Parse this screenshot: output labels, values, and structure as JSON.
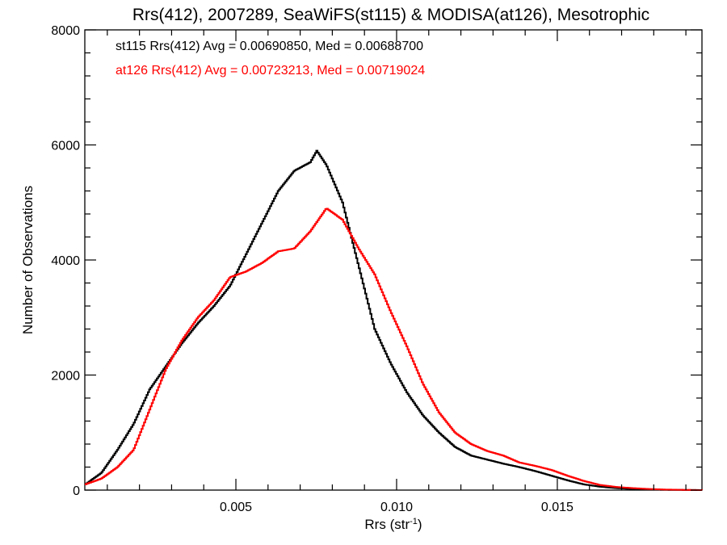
{
  "chart_data": {
    "type": "line",
    "step": true,
    "title": "Rrs(412), 2007289, SeaWiFS(st115) & MODISA(at126), Mesotrophic",
    "xlabel_main": "Rrs (str",
    "xlabel_sup": "-1",
    "xlabel_close": ")",
    "ylabel": "Number of Observations",
    "xlim": [
      0.0003,
      0.0195
    ],
    "ylim": [
      0,
      8000
    ],
    "x_ticks": [
      {
        "value": 0.005,
        "label": "0.005"
      },
      {
        "value": 0.01,
        "label": "0.010"
      },
      {
        "value": 0.015,
        "label": "0.015"
      }
    ],
    "y_ticks": [
      {
        "value": 0,
        "label": "0"
      },
      {
        "value": 2000,
        "label": "2000"
      },
      {
        "value": 4000,
        "label": "4000"
      },
      {
        "value": 6000,
        "label": "6000"
      },
      {
        "value": 8000,
        "label": "8000"
      }
    ],
    "annotations": [
      {
        "text": "st115 Rrs(412) Avg = 0.00690850, Med = 0.00688700",
        "color": "#000000"
      },
      {
        "text": "at126 Rrs(412) Avg = 0.00723213, Med = 0.00719024",
        "color": "#ff0000"
      }
    ],
    "series": [
      {
        "color": "#000000",
        "points": [
          [
            0.0003,
            100
          ],
          [
            0.0008,
            300
          ],
          [
            0.0013,
            700
          ],
          [
            0.0018,
            1150
          ],
          [
            0.0023,
            1750
          ],
          [
            0.0028,
            2150
          ],
          [
            0.0033,
            2550
          ],
          [
            0.0038,
            2900
          ],
          [
            0.0043,
            3200
          ],
          [
            0.0048,
            3550
          ],
          [
            0.0053,
            4100
          ],
          [
            0.0058,
            4650
          ],
          [
            0.0063,
            5200
          ],
          [
            0.0068,
            5550
          ],
          [
            0.0073,
            5700
          ],
          [
            0.0075,
            5900
          ],
          [
            0.0078,
            5650
          ],
          [
            0.0083,
            5000
          ],
          [
            0.0088,
            3900
          ],
          [
            0.0093,
            2800
          ],
          [
            0.0098,
            2200
          ],
          [
            0.0103,
            1700
          ],
          [
            0.0108,
            1300
          ],
          [
            0.0113,
            1000
          ],
          [
            0.0118,
            750
          ],
          [
            0.0123,
            600
          ],
          [
            0.0128,
            530
          ],
          [
            0.0133,
            460
          ],
          [
            0.0138,
            400
          ],
          [
            0.0143,
            330
          ],
          [
            0.0148,
            250
          ],
          [
            0.0153,
            170
          ],
          [
            0.0158,
            100
          ],
          [
            0.0163,
            60
          ],
          [
            0.0168,
            35
          ],
          [
            0.0173,
            20
          ],
          [
            0.0178,
            10
          ],
          [
            0.0183,
            5
          ],
          [
            0.0195,
            0
          ]
        ]
      },
      {
        "color": "#ff0000",
        "points": [
          [
            0.0003,
            100
          ],
          [
            0.0008,
            200
          ],
          [
            0.0013,
            400
          ],
          [
            0.0018,
            700
          ],
          [
            0.0023,
            1400
          ],
          [
            0.0028,
            2100
          ],
          [
            0.0033,
            2600
          ],
          [
            0.0038,
            3000
          ],
          [
            0.0043,
            3300
          ],
          [
            0.0048,
            3700
          ],
          [
            0.0053,
            3800
          ],
          [
            0.0058,
            3950
          ],
          [
            0.0063,
            4150
          ],
          [
            0.0068,
            4200
          ],
          [
            0.0073,
            4500
          ],
          [
            0.0078,
            4900
          ],
          [
            0.0083,
            4700
          ],
          [
            0.0088,
            4200
          ],
          [
            0.0093,
            3750
          ],
          [
            0.0098,
            3100
          ],
          [
            0.0103,
            2500
          ],
          [
            0.0108,
            1850
          ],
          [
            0.0113,
            1350
          ],
          [
            0.0118,
            1000
          ],
          [
            0.0123,
            800
          ],
          [
            0.0128,
            680
          ],
          [
            0.0133,
            600
          ],
          [
            0.0138,
            480
          ],
          [
            0.0143,
            420
          ],
          [
            0.0148,
            350
          ],
          [
            0.0153,
            250
          ],
          [
            0.0158,
            160
          ],
          [
            0.0163,
            90
          ],
          [
            0.0168,
            55
          ],
          [
            0.0173,
            35
          ],
          [
            0.0178,
            20
          ],
          [
            0.0183,
            10
          ],
          [
            0.0188,
            5
          ],
          [
            0.0195,
            0
          ]
        ]
      }
    ]
  }
}
